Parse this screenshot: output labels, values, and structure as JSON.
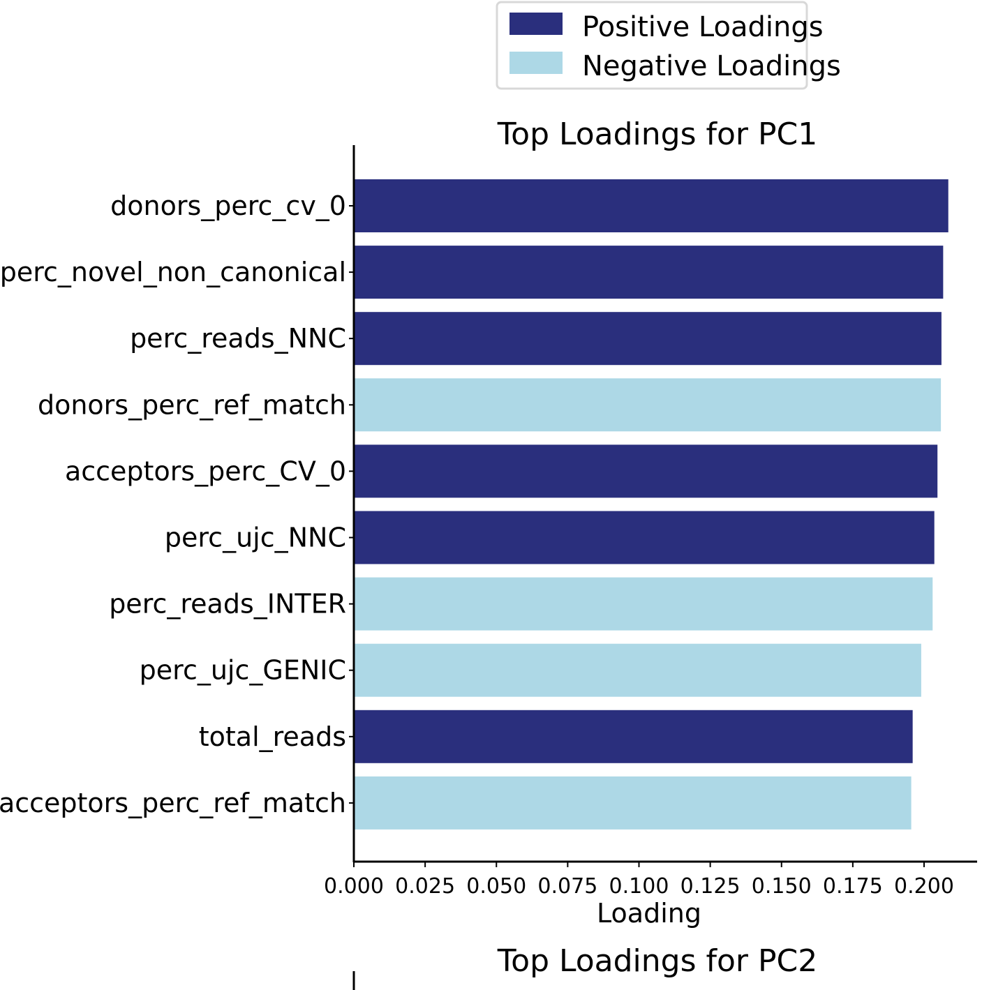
{
  "legend": {
    "positive_label": "Positive Loadings",
    "negative_label": "Negative Loadings",
    "positive_color": "#2a2f7d",
    "negative_color": "#add8e6"
  },
  "chart_data": [
    {
      "type": "bar",
      "orientation": "horizontal",
      "title": "Top Loadings for PC1",
      "xlabel": "Loading",
      "ylabel": "",
      "xlim": [
        0,
        0.21
      ],
      "xticks": [
        "0.000",
        "0.025",
        "0.050",
        "0.075",
        "0.100",
        "0.125",
        "0.150",
        "0.175",
        "0.200"
      ],
      "legend_position": "top-right",
      "categories": [
        "donors_perc_cv_0",
        "perc_novel_non_canonical",
        "perc_reads_NNC",
        "donors_perc_ref_match",
        "acceptors_perc_CV_0",
        "perc_ujc_NNC",
        "perc_reads_INTER",
        "perc_ujc_GENIC",
        "total_reads",
        "acceptors_perc_ref_match"
      ],
      "values": [
        0.2085,
        0.2067,
        0.2061,
        0.2059,
        0.2047,
        0.2036,
        0.203,
        0.199,
        0.196,
        0.1955
      ],
      "sign": [
        "positive",
        "positive",
        "positive",
        "negative",
        "positive",
        "positive",
        "negative",
        "negative",
        "positive",
        "negative"
      ]
    },
    {
      "type": "bar",
      "orientation": "horizontal",
      "title": "Top Loadings for PC2"
    }
  ]
}
